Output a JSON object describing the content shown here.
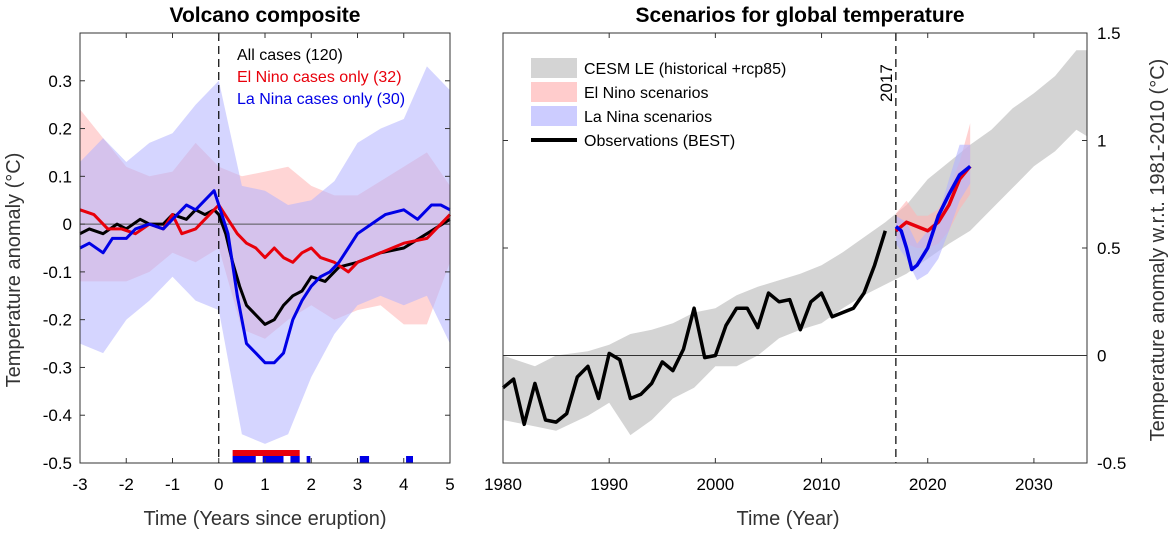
{
  "chart_data": [
    {
      "type": "line",
      "title": "Volcano composite",
      "xlabel": "Time (Years since eruption)",
      "ylabel": "Temperature anomaly (°C)",
      "xlim": [
        -3,
        5
      ],
      "ylim": [
        -0.5,
        0.4
      ],
      "xticks": [
        -3,
        -2,
        -1,
        0,
        1,
        2,
        3,
        4,
        5
      ],
      "xtick_labels": [
        "-3",
        "-2",
        "-1",
        "0",
        "1",
        "2",
        "3",
        "4",
        "5"
      ],
      "yticks": [
        -0.5,
        -0.4,
        -0.3,
        -0.2,
        -0.1,
        0,
        0.1,
        0.2,
        0.3
      ],
      "ytick_labels": [
        "-0.5",
        "-0.4",
        "-0.3",
        "-0.2",
        "-0.1",
        "0",
        "0.1",
        "0.2",
        "0.3"
      ],
      "grid": false,
      "legend_position": "top-right",
      "zero_line": 0,
      "vline": 0,
      "colors": {
        "all": "#000000",
        "el_nino": "#e8000b",
        "la_nina": "#0000e6",
        "el_nino_band": "#ffb3b3",
        "la_nina_band": "#b3b3ff"
      },
      "series": [
        {
          "name": "All cases (120)",
          "color": "#000000",
          "x": [
            -3,
            -2.8,
            -2.5,
            -2.2,
            -2,
            -1.7,
            -1.5,
            -1.2,
            -1,
            -0.7,
            -0.5,
            -0.3,
            -0.1,
            0,
            0.15,
            0.3,
            0.45,
            0.6,
            0.8,
            1,
            1.2,
            1.4,
            1.6,
            1.8,
            2,
            2.3,
            2.6,
            3,
            3.5,
            4,
            4.5,
            5
          ],
          "y": [
            -0.02,
            -0.01,
            -0.02,
            0,
            -0.01,
            0.01,
            0,
            0,
            0.02,
            0.01,
            0.03,
            0.02,
            0.03,
            0.02,
            -0.02,
            -0.08,
            -0.13,
            -0.17,
            -0.19,
            -0.21,
            -0.2,
            -0.17,
            -0.15,
            -0.14,
            -0.11,
            -0.12,
            -0.09,
            -0.08,
            -0.06,
            -0.05,
            -0.02,
            0.01
          ]
        },
        {
          "name": "El Nino cases only (32)",
          "color": "#e8000b",
          "x": [
            -3,
            -2.7,
            -2.4,
            -2.1,
            -1.8,
            -1.5,
            -1.2,
            -1,
            -0.8,
            -0.5,
            -0.3,
            0,
            0.2,
            0.4,
            0.6,
            0.8,
            1,
            1.2,
            1.4,
            1.6,
            1.8,
            2,
            2.2,
            2.5,
            2.8,
            3,
            3.5,
            4,
            4.5,
            5
          ],
          "y": [
            0.03,
            0.02,
            -0.01,
            -0.01,
            -0.02,
            0,
            -0.01,
            0.02,
            -0.02,
            -0.01,
            0.01,
            0.04,
            0.01,
            -0.02,
            -0.04,
            -0.05,
            -0.07,
            -0.05,
            -0.07,
            -0.08,
            -0.06,
            -0.05,
            -0.07,
            -0.08,
            -0.1,
            -0.08,
            -0.06,
            -0.04,
            -0.03,
            0.02
          ]
        },
        {
          "name": "La Nina cases only (30)",
          "color": "#0000e6",
          "x": [
            -3,
            -2.8,
            -2.5,
            -2.3,
            -2,
            -1.8,
            -1.5,
            -1.2,
            -1,
            -0.7,
            -0.5,
            -0.3,
            -0.1,
            0,
            0.2,
            0.4,
            0.6,
            0.8,
            1,
            1.2,
            1.4,
            1.6,
            1.8,
            2,
            2.2,
            2.4,
            2.6,
            2.8,
            3,
            3.3,
            3.6,
            4,
            4.3,
            4.6,
            4.8,
            5
          ],
          "y": [
            -0.05,
            -0.04,
            -0.06,
            -0.03,
            -0.03,
            -0.01,
            0,
            -0.01,
            0.01,
            0.04,
            0.03,
            0.05,
            0.07,
            0.04,
            -0.02,
            -0.15,
            -0.25,
            -0.27,
            -0.29,
            -0.29,
            -0.27,
            -0.2,
            -0.16,
            -0.13,
            -0.11,
            -0.1,
            -0.08,
            -0.05,
            -0.02,
            0,
            0.02,
            0.03,
            0.01,
            0.04,
            0.04,
            0.03
          ]
        }
      ],
      "bands": [
        {
          "series": "El Nino cases only (32)",
          "x": [
            -3,
            -2.5,
            -2,
            -1.5,
            -1,
            -0.5,
            0,
            0.5,
            1,
            1.5,
            2,
            2.5,
            3,
            3.5,
            4,
            4.5,
            5
          ],
          "lower": [
            -0.12,
            -0.12,
            -0.12,
            -0.1,
            -0.06,
            -0.08,
            -0.05,
            -0.22,
            -0.24,
            -0.2,
            -0.17,
            -0.2,
            -0.18,
            -0.17,
            -0.21,
            -0.21,
            -0.08
          ],
          "upper": [
            0.24,
            0.18,
            0.12,
            0.1,
            0.11,
            0.17,
            0.12,
            0.1,
            0.11,
            0.12,
            0.08,
            0.06,
            0.06,
            0.09,
            0.12,
            0.15,
            0.08
          ]
        },
        {
          "series": "La Nina cases only (30)",
          "x": [
            -3,
            -2.5,
            -2,
            -1.5,
            -1,
            -0.5,
            0,
            0.5,
            1,
            1.5,
            2,
            2.5,
            3,
            3.5,
            4,
            4.5,
            5
          ],
          "lower": [
            -0.25,
            -0.27,
            -0.2,
            -0.16,
            -0.11,
            -0.16,
            -0.18,
            -0.44,
            -0.46,
            -0.44,
            -0.32,
            -0.23,
            -0.17,
            -0.15,
            -0.17,
            -0.15,
            -0.25
          ],
          "upper": [
            0.13,
            0.18,
            0.13,
            0.17,
            0.19,
            0.25,
            0.3,
            0.08,
            0.07,
            0.04,
            0.05,
            0.09,
            0.17,
            0.2,
            0.22,
            0.33,
            0.28
          ]
        }
      ],
      "legend": [
        {
          "label": "All cases (120)",
          "color": "#000000"
        },
        {
          "label": "El Nino cases only (32)",
          "color": "#e8000b"
        },
        {
          "label": "La Nina cases only (30)",
          "color": "#0000e6"
        }
      ],
      "event_markers": {
        "el_nino": [
          {
            "start": 0.3,
            "end": 1.75,
            "color": "#e8000b"
          }
        ],
        "la_nina": [
          {
            "start": 0.3,
            "end": 0.8,
            "color": "#0000e6"
          },
          {
            "start": 0.95,
            "end": 1.4,
            "color": "#0000e6"
          },
          {
            "start": 1.55,
            "end": 1.75,
            "color": "#0000e6"
          },
          {
            "start": 1.9,
            "end": 1.98,
            "color": "#0000e6"
          },
          {
            "start": 3.05,
            "end": 3.25,
            "color": "#0000e6"
          },
          {
            "start": 4.05,
            "end": 4.2,
            "color": "#0000e6"
          }
        ]
      }
    },
    {
      "type": "line",
      "title": "Scenarios for global temperature",
      "xlabel": "Time (Year)",
      "ylabel": "Temperature anomaly w.r.t. 1981-2010 (°C)",
      "y_axis_position": "right",
      "xlim": [
        1980,
        2035
      ],
      "ylim": [
        -0.5,
        1.5
      ],
      "xticks": [
        1980,
        1990,
        2000,
        2010,
        2020,
        2030
      ],
      "xtick_labels": [
        "1980",
        "1990",
        "2000",
        "2010",
        "2020",
        "2030"
      ],
      "yticks": [
        -0.5,
        0,
        0.5,
        1,
        1.5
      ],
      "ytick_labels": [
        "-0.5",
        "0",
        "0.5",
        "1",
        "1.5"
      ],
      "grid": false,
      "legend_position": "top-left",
      "zero_line": 0,
      "vline": {
        "x": 2017,
        "label": "2017"
      },
      "colors": {
        "observations": "#000000",
        "cesm_band": "#d4d4d4",
        "el_nino": "#e8000b",
        "la_nina": "#0000e6",
        "el_nino_band": "#ffb3b3",
        "la_nina_band": "#b3b3ff"
      },
      "bands": [
        {
          "name": "CESM LE (historical +rcp85)",
          "color": "#d4d4d4",
          "x": [
            1980,
            1983,
            1985,
            1988,
            1990,
            1992,
            1994,
            1996,
            1998,
            2000,
            2002,
            2004,
            2006,
            2008,
            2010,
            2012,
            2014,
            2016,
            2018,
            2020,
            2022,
            2024,
            2026,
            2028,
            2030,
            2032,
            2034,
            2035
          ],
          "lower": [
            -0.3,
            -0.33,
            -0.35,
            -0.28,
            -0.22,
            -0.37,
            -0.3,
            -0.2,
            -0.15,
            -0.05,
            -0.05,
            0.0,
            0.08,
            0.12,
            0.15,
            0.22,
            0.28,
            0.33,
            0.38,
            0.45,
            0.52,
            0.58,
            0.68,
            0.78,
            0.88,
            0.95,
            1.05,
            1.02
          ],
          "upper": [
            0.0,
            -0.05,
            0.0,
            0.02,
            0.05,
            0.1,
            0.12,
            0.15,
            0.2,
            0.22,
            0.28,
            0.32,
            0.35,
            0.38,
            0.42,
            0.48,
            0.55,
            0.62,
            0.7,
            0.82,
            0.9,
            0.98,
            1.05,
            1.15,
            1.22,
            1.3,
            1.42,
            1.42
          ]
        },
        {
          "name": "El Nino scenarios",
          "color": "#ffb3b3",
          "x": [
            2017,
            2018,
            2019,
            2020,
            2021,
            2022,
            2023,
            2024
          ],
          "lower": [
            0.55,
            0.52,
            0.5,
            0.5,
            0.52,
            0.58,
            0.68,
            0.75
          ],
          "upper": [
            0.66,
            0.72,
            0.65,
            0.65,
            0.68,
            0.78,
            0.9,
            1.08
          ]
        },
        {
          "name": "La Nina scenarios",
          "color": "#b3b3ff",
          "x": [
            2017,
            2018,
            2019,
            2020,
            2021,
            2022,
            2023,
            2024
          ],
          "lower": [
            0.52,
            0.45,
            0.35,
            0.38,
            0.45,
            0.58,
            0.72,
            0.8
          ],
          "upper": [
            0.65,
            0.62,
            0.52,
            0.58,
            0.65,
            0.82,
            0.98,
            0.98
          ]
        }
      ],
      "series": [
        {
          "name": "Observations (BEST)",
          "color": "#000000",
          "x": [
            1980,
            1981,
            1982,
            1983,
            1984,
            1985,
            1986,
            1987,
            1988,
            1989,
            1990,
            1991,
            1992,
            1993,
            1994,
            1995,
            1996,
            1997,
            1998,
            1999,
            2000,
            2001,
            2002,
            2003,
            2004,
            2005,
            2006,
            2007,
            2008,
            2009,
            2010,
            2011,
            2012,
            2013,
            2014,
            2015,
            2016
          ],
          "y": [
            -0.15,
            -0.11,
            -0.32,
            -0.13,
            -0.3,
            -0.31,
            -0.27,
            -0.1,
            -0.05,
            -0.2,
            0.01,
            -0.02,
            -0.2,
            -0.18,
            -0.13,
            -0.03,
            -0.07,
            0.03,
            0.22,
            -0.01,
            0.0,
            0.14,
            0.22,
            0.22,
            0.13,
            0.29,
            0.25,
            0.26,
            0.12,
            0.25,
            0.29,
            0.18,
            0.2,
            0.22,
            0.29,
            0.42,
            0.58
          ]
        },
        {
          "name": "El Nino scenarios",
          "color": "#e8000b",
          "x": [
            2017,
            2018,
            2019,
            2020,
            2021,
            2022,
            2023,
            2024
          ],
          "y": [
            0.58,
            0.62,
            0.6,
            0.58,
            0.62,
            0.7,
            0.82,
            0.88
          ]
        },
        {
          "name": "La Nina scenarios",
          "color": "#0000e6",
          "x": [
            2017,
            2017.5,
            2018,
            2018.5,
            2019,
            2020,
            2021,
            2022,
            2023,
            2024
          ],
          "y": [
            0.6,
            0.58,
            0.5,
            0.4,
            0.42,
            0.5,
            0.65,
            0.75,
            0.84,
            0.88
          ]
        }
      ],
      "legend": [
        {
          "label": "CESM LE (historical +rcp85)",
          "color": "#d4d4d4",
          "kind": "patch"
        },
        {
          "label": "El Nino scenarios",
          "color": "#ffcccc",
          "kind": "patch"
        },
        {
          "label": "La Nina scenarios",
          "color": "#ccccff",
          "kind": "patch"
        },
        {
          "label": "Observations (BEST)",
          "color": "#000000",
          "kind": "line"
        }
      ]
    }
  ]
}
